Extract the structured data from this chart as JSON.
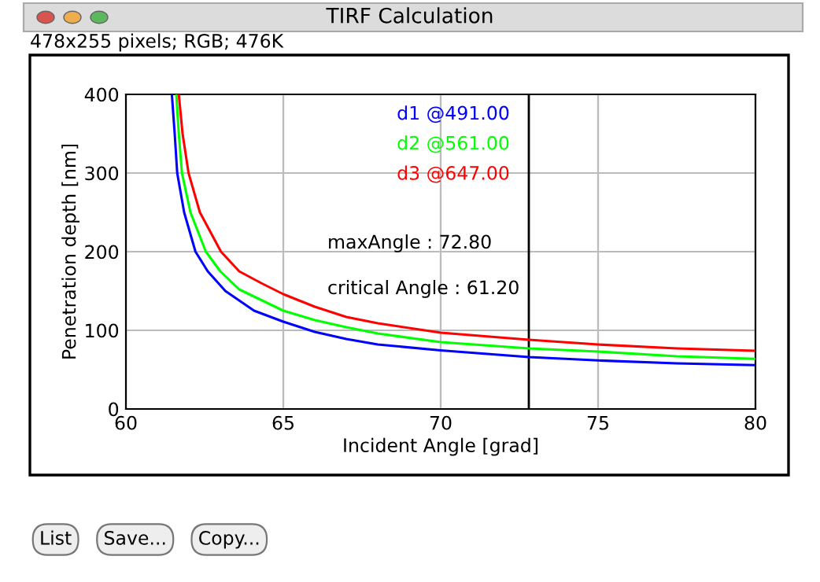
{
  "chart_data": {
    "type": "line",
    "title": "TIRF Calculation",
    "subtitle": "478x255 pixels; RGB; 476K",
    "xlabel": "Incident Angle [grad]",
    "ylabel": "Penetration depth [nm]",
    "xlim": [
      60,
      80
    ],
    "ylim": [
      0,
      400
    ],
    "xticks": [
      60,
      65,
      70,
      75,
      80
    ],
    "yticks": [
      0,
      100,
      200,
      300,
      400
    ],
    "grid": true,
    "legend": "top",
    "marker": "none",
    "line_style": "solid",
    "ref_lines": [
      {
        "axis": "x",
        "value": 72.8,
        "color": "#000000"
      }
    ],
    "annotations": [
      "maxAngle : 72.80",
      "critical Angle : 61.20",
      "List",
      "Save...",
      "Copy..."
    ],
    "series": [
      {
        "name": "d1 @491.00",
        "color": "#0000ff",
        "x": [
          61.46,
          61.55,
          61.63,
          61.85,
          62.21,
          62.6,
          63.16,
          64.07,
          65,
          66,
          67,
          68,
          70,
          72.8,
          75,
          77.5,
          80
        ],
        "values": [
          400,
          350,
          300,
          250,
          200,
          175,
          150,
          125,
          111,
          98,
          89,
          82,
          74.5,
          66,
          61.7,
          58,
          55.7
        ]
      },
      {
        "name": "d2 @561.00",
        "color": "#00ff00",
        "x": [
          61.6,
          61.68,
          61.78,
          62.05,
          62.54,
          63,
          63.6,
          65,
          66,
          67,
          68,
          70,
          72.8,
          75,
          77.5,
          80
        ],
        "values": [
          400,
          350,
          300,
          250,
          200,
          175,
          152,
          125,
          113,
          104,
          96,
          85,
          77,
          73,
          67,
          63.7
        ]
      },
      {
        "name": "d3 @647.00",
        "color": "#ff0000",
        "x": [
          61.68,
          61.8,
          61.99,
          62.35,
          63.02,
          63.6,
          64.3,
          65,
          66,
          67,
          68,
          70,
          72.8,
          75,
          77.5,
          80
        ],
        "values": [
          400,
          350,
          300,
          250,
          200,
          175,
          160,
          146,
          130,
          117,
          109,
          97,
          88,
          82,
          77,
          74
        ]
      }
    ]
  }
}
